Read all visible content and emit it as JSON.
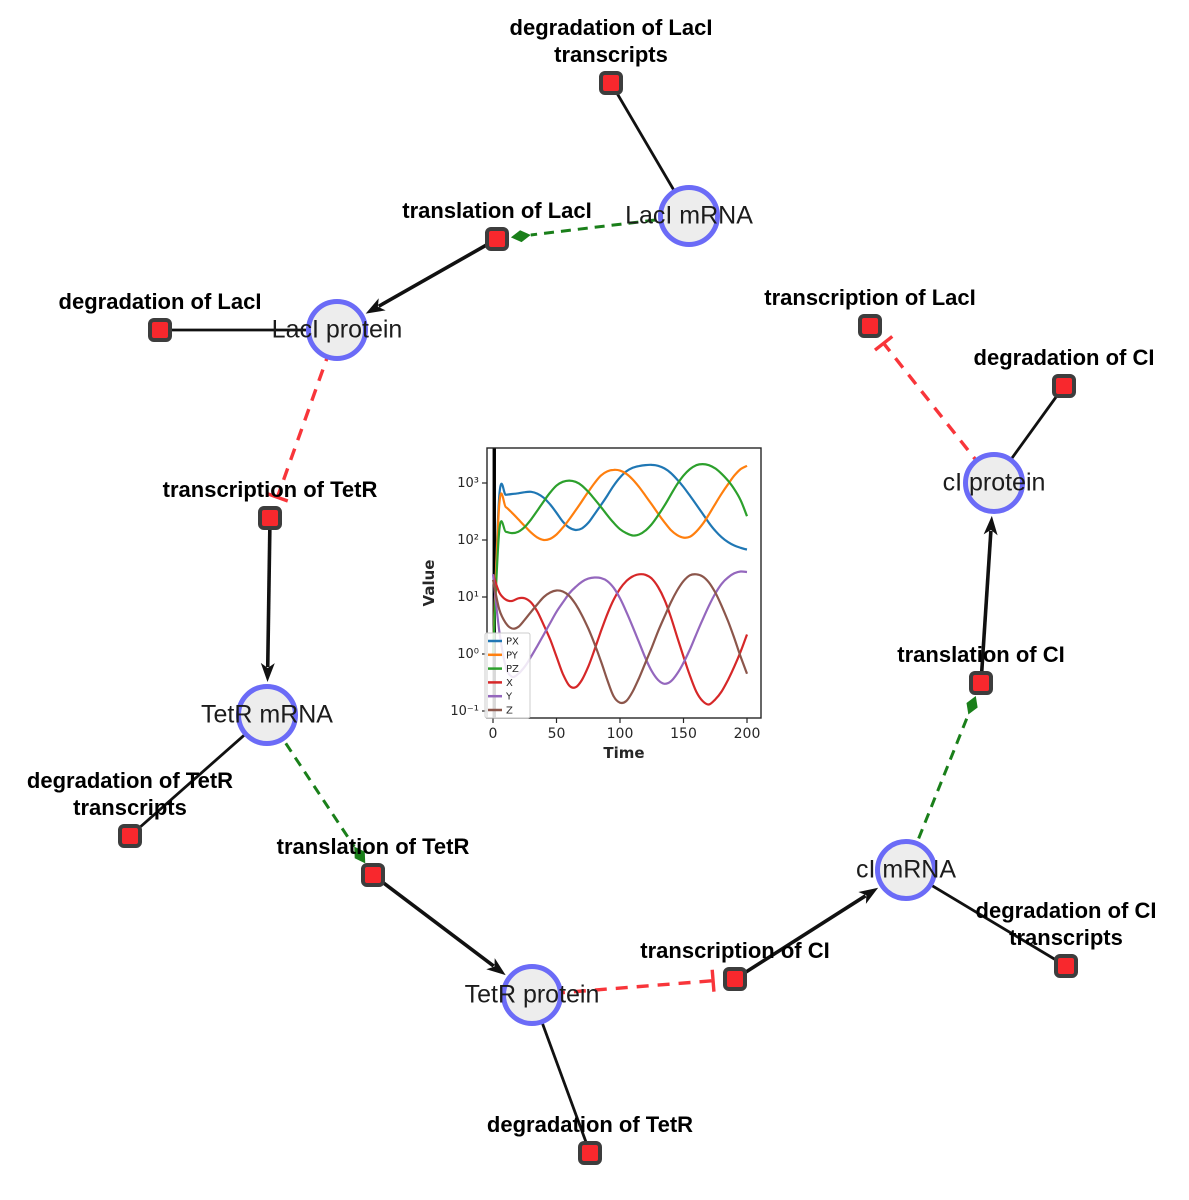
{
  "colors": {
    "background": "#ffffff",
    "species_fill": "#ededed",
    "species_border": "#6b6bf7",
    "reaction_fill": "#f8282d",
    "reaction_border": "#3d3d3d",
    "edge": "#111111",
    "activation": "#1a7f1a",
    "inhibition": "#f8353a"
  },
  "network": {
    "species": [
      {
        "id": "laci_mrna",
        "label": "LacI mRNA"
      },
      {
        "id": "laci_protein",
        "label": "LacI protein"
      },
      {
        "id": "tetr_mrna",
        "label": "TetR mRNA"
      },
      {
        "id": "tetr_protein",
        "label": "TetR protein"
      },
      {
        "id": "ci_mrna",
        "label": "cI mRNA"
      },
      {
        "id": "ci_protein",
        "label": "cI protein"
      }
    ],
    "reactions": [
      {
        "id": "deg_laci_tx",
        "label": "degradation of LacI transcripts",
        "label_lines": [
          "degradation of LacI",
          "transcripts"
        ]
      },
      {
        "id": "transl_laci",
        "label": "translation of LacI",
        "label_lines": [
          "translation of LacI"
        ]
      },
      {
        "id": "deg_laci",
        "label": "degradation of LacI",
        "label_lines": [
          "degradation of LacI"
        ]
      },
      {
        "id": "transc_laci",
        "label": "transcription of LacI",
        "label_lines": [
          "transcription of LacI"
        ]
      },
      {
        "id": "deg_ci",
        "label": "degradation of CI",
        "label_lines": [
          "degradation of CI"
        ]
      },
      {
        "id": "transc_tetr",
        "label": "transcription of TetR",
        "label_lines": [
          "transcription of TetR"
        ]
      },
      {
        "id": "deg_tetr_tx",
        "label": "degradation of TetR transcripts",
        "label_lines": [
          "degradation of TetR",
          "transcripts"
        ]
      },
      {
        "id": "transl_tetr",
        "label": "translation of TetR",
        "label_lines": [
          "translation of TetR"
        ]
      },
      {
        "id": "deg_tetr",
        "label": "degradation of TetR",
        "label_lines": [
          "degradation of TetR"
        ]
      },
      {
        "id": "transc_ci",
        "label": "transcription of CI",
        "label_lines": [
          "transcription of CI"
        ]
      },
      {
        "id": "deg_ci_tx",
        "label": "degradation of CI transcripts",
        "label_lines": [
          "degradation of CI",
          "transcripts"
        ]
      },
      {
        "id": "transl_ci",
        "label": "translation of CI",
        "label_lines": [
          "translation of CI"
        ]
      }
    ],
    "edges": [
      {
        "from": "laci_mrna",
        "to": "deg_laci_tx",
        "type": "consumption"
      },
      {
        "from": "laci_mrna",
        "to": "transl_laci",
        "type": "activation"
      },
      {
        "from": "transl_laci",
        "to": "laci_protein",
        "type": "production"
      },
      {
        "from": "laci_protein",
        "to": "deg_laci",
        "type": "consumption"
      },
      {
        "from": "laci_protein",
        "to": "transc_tetr",
        "type": "inhibition"
      },
      {
        "from": "transc_tetr",
        "to": "tetr_mrna",
        "type": "production"
      },
      {
        "from": "tetr_mrna",
        "to": "deg_tetr_tx",
        "type": "consumption"
      },
      {
        "from": "tetr_mrna",
        "to": "transl_tetr",
        "type": "activation"
      },
      {
        "from": "transl_tetr",
        "to": "tetr_protein",
        "type": "production"
      },
      {
        "from": "tetr_protein",
        "to": "deg_tetr",
        "type": "consumption"
      },
      {
        "from": "tetr_protein",
        "to": "transc_ci",
        "type": "inhibition"
      },
      {
        "from": "transc_ci",
        "to": "ci_mrna",
        "type": "production"
      },
      {
        "from": "ci_mrna",
        "to": "deg_ci_tx",
        "type": "consumption"
      },
      {
        "from": "ci_mrna",
        "to": "transl_ci",
        "type": "activation"
      },
      {
        "from": "transl_ci",
        "to": "ci_protein",
        "type": "production"
      },
      {
        "from": "ci_protein",
        "to": "deg_ci",
        "type": "consumption"
      },
      {
        "from": "ci_protein",
        "to": "transc_laci",
        "type": "inhibition"
      }
    ]
  },
  "chart_data": {
    "type": "line",
    "xlabel": "Time",
    "ylabel": "Value",
    "xlim": [
      0,
      200
    ],
    "ylog": true,
    "ylim": [
      0.1,
      3000
    ],
    "xticks": [
      0,
      50,
      100,
      150,
      200
    ],
    "yticks": [
      1000,
      100,
      10,
      1,
      0.1
    ],
    "ytick_labels": [
      "10³",
      "10²",
      "10¹",
      "10⁰",
      "10⁻¹"
    ],
    "legend_position": "lower left",
    "grid": false,
    "vline_x": 1,
    "x": [
      0,
      5,
      10,
      15,
      20,
      25,
      30,
      35,
      40,
      45,
      50,
      55,
      60,
      65,
      70,
      75,
      80,
      85,
      90,
      95,
      100,
      105,
      110,
      115,
      120,
      125,
      130,
      135,
      140,
      145,
      150,
      155,
      160,
      165,
      170,
      175,
      180,
      185,
      190,
      195,
      200
    ],
    "series": [
      {
        "name": "PX",
        "color": "#1f77b4",
        "values": [
          1,
          600,
          620,
          640,
          660,
          690,
          700,
          650,
          550,
          420,
          300,
          210,
          165,
          150,
          160,
          200,
          285,
          410,
          600,
          900,
          1250,
          1600,
          1850,
          1980,
          2060,
          2080,
          2000,
          1800,
          1500,
          1150,
          850,
          600,
          420,
          290,
          200,
          145,
          112,
          92,
          80,
          73,
          68
        ]
      },
      {
        "name": "PY",
        "color": "#ff7f0e",
        "values": [
          1,
          430,
          380,
          300,
          230,
          175,
          135,
          110,
          100,
          105,
          125,
          165,
          230,
          330,
          480,
          700,
          1000,
          1350,
          1600,
          1700,
          1650,
          1450,
          1150,
          850,
          600,
          420,
          290,
          205,
          150,
          122,
          110,
          114,
          140,
          190,
          280,
          430,
          650,
          950,
          1350,
          1750,
          2000
        ]
      },
      {
        "name": "PZ",
        "color": "#2ca02c",
        "values": [
          1,
          150,
          140,
          132,
          140,
          170,
          230,
          330,
          480,
          680,
          900,
          1050,
          1100,
          1050,
          900,
          700,
          520,
          380,
          272,
          200,
          155,
          132,
          120,
          125,
          146,
          190,
          270,
          400,
          620,
          950,
          1350,
          1750,
          2050,
          2150,
          2050,
          1800,
          1450,
          1100,
          780,
          500,
          262
        ]
      },
      {
        "name": "X",
        "color": "#d62728",
        "values": [
          25,
          12,
          9,
          8.5,
          9.5,
          9.5,
          8,
          5.5,
          3.2,
          1.8,
          0.9,
          0.45,
          0.28,
          0.26,
          0.35,
          0.6,
          1.2,
          2.5,
          5,
          9,
          14,
          19,
          23,
          25,
          24.5,
          21,
          15,
          9,
          4.5,
          2,
          0.9,
          0.42,
          0.22,
          0.15,
          0.13,
          0.16,
          0.22,
          0.35,
          0.6,
          1.1,
          2.2
        ]
      },
      {
        "name": "Y",
        "color": "#9467bd",
        "values": [
          25,
          2.5,
          0.6,
          0.4,
          0.45,
          0.6,
          0.9,
          1.4,
          2.2,
          3.5,
          5.5,
          8,
          11.5,
          15,
          18.5,
          21,
          22,
          21.5,
          19,
          14.5,
          9.5,
          5.5,
          3,
          1.6,
          0.85,
          0.5,
          0.35,
          0.3,
          0.33,
          0.45,
          0.7,
          1.2,
          2.2,
          4,
          7,
          11.5,
          17,
          22,
          26,
          28,
          27.5
        ]
      },
      {
        "name": "Z",
        "color": "#8c564b",
        "values": [
          20,
          6,
          3.5,
          2.8,
          3,
          4,
          5.5,
          7.5,
          10,
          12,
          13,
          12.5,
          10.5,
          7.5,
          4.8,
          2.8,
          1.5,
          0.75,
          0.35,
          0.18,
          0.14,
          0.15,
          0.22,
          0.38,
          0.7,
          1.3,
          2.5,
          4.5,
          8,
          13,
          19,
          24,
          25,
          23,
          18,
          12,
          7,
          3.8,
          1.9,
          0.9,
          0.45
        ]
      }
    ]
  }
}
